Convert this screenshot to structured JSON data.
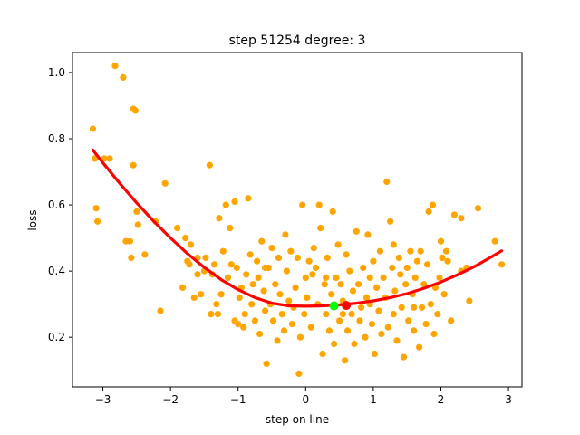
{
  "chart_data": {
    "type": "scatter",
    "title": "step 51254   degree: 3",
    "xlabel": "step on line",
    "ylabel": "loss",
    "xlim": [
      -3.45,
      3.2
    ],
    "ylim": [
      0.05,
      1.06
    ],
    "xticks": [
      -3,
      -2,
      -1,
      0,
      1,
      2,
      3
    ],
    "yticks": [
      0.2,
      0.4,
      0.6,
      0.8,
      1.0
    ],
    "xtick_labels": [
      "−3",
      "−2",
      "−1",
      "0",
      "1",
      "2",
      "3"
    ],
    "ytick_labels": [
      "0.2",
      "0.4",
      "0.6",
      "0.8",
      "1.0"
    ],
    "grid": false,
    "colors": {
      "scatter": "#ffa500",
      "fit": "#ff0000",
      "green_marker": "#00ff00",
      "red_marker": "#ff0000"
    },
    "fit_curve": {
      "degree": 3,
      "x": [
        -3.15,
        -3.0,
        -2.75,
        -2.5,
        -2.25,
        -2.0,
        -1.75,
        -1.5,
        -1.25,
        -1.0,
        -0.75,
        -0.5,
        -0.25,
        0.0,
        0.25,
        0.5,
        0.75,
        1.0,
        1.25,
        1.5,
        1.75,
        2.0,
        2.25,
        2.5,
        2.75,
        2.9
      ],
      "y": [
        0.766,
        0.727,
        0.665,
        0.606,
        0.551,
        0.5,
        0.453,
        0.411,
        0.374,
        0.344,
        0.32,
        0.303,
        0.295,
        0.294,
        0.295,
        0.298,
        0.303,
        0.31,
        0.32,
        0.332,
        0.348,
        0.367,
        0.389,
        0.414,
        0.443,
        0.461
      ]
    },
    "markers": [
      {
        "x": 0.42,
        "y": 0.295,
        "color": "#00ff00"
      },
      {
        "x": 0.6,
        "y": 0.296,
        "color": "#ff0000"
      }
    ],
    "points": [
      [
        -3.15,
        0.83
      ],
      [
        -3.12,
        0.74
      ],
      [
        -3.1,
        0.59
      ],
      [
        -3.08,
        0.55
      ],
      [
        -2.98,
        0.74
      ],
      [
        -2.82,
        1.02
      ],
      [
        -2.7,
        0.985
      ],
      [
        -2.66,
        0.49
      ],
      [
        -2.6,
        0.49
      ],
      [
        -2.58,
        0.44
      ],
      [
        -2.55,
        0.89
      ],
      [
        -2.52,
        0.885
      ],
      [
        -2.55,
        0.72
      ],
      [
        -2.5,
        0.58
      ],
      [
        -2.48,
        0.54
      ],
      [
        -2.38,
        0.45
      ],
      [
        -2.22,
        0.55
      ],
      [
        -2.15,
        0.28
      ],
      [
        -2.08,
        0.665
      ],
      [
        -1.9,
        0.53
      ],
      [
        -1.82,
        0.35
      ],
      [
        -1.78,
        0.5
      ],
      [
        -1.75,
        0.43
      ],
      [
        -1.72,
        0.42
      ],
      [
        -1.65,
        0.32
      ],
      [
        -1.6,
        0.44
      ],
      [
        -1.55,
        0.33
      ],
      [
        -1.5,
        0.4
      ],
      [
        -1.48,
        0.44
      ],
      [
        -1.42,
        0.72
      ],
      [
        -1.4,
        0.27
      ],
      [
        -1.38,
        0.39
      ],
      [
        -1.35,
        0.42
      ],
      [
        -1.32,
        0.3
      ],
      [
        -1.3,
        0.27
      ],
      [
        -1.28,
        0.56
      ],
      [
        -1.25,
        0.33
      ],
      [
        -1.22,
        0.46
      ],
      [
        -1.18,
        0.6
      ],
      [
        -1.15,
        0.38
      ],
      [
        -1.12,
        0.53
      ],
      [
        -1.1,
        0.42
      ],
      [
        -1.05,
        0.61
      ],
      [
        -1.02,
        0.41
      ],
      [
        -1.0,
        0.24
      ],
      [
        -0.98,
        0.32
      ],
      [
        -0.95,
        0.35
      ],
      [
        -0.92,
        0.23
      ],
      [
        -0.9,
        0.27
      ],
      [
        -0.88,
        0.39
      ],
      [
        -0.85,
        0.62
      ],
      [
        -0.82,
        0.45
      ],
      [
        -0.8,
        0.3
      ],
      [
        -0.78,
        0.36
      ],
      [
        -0.75,
        0.25
      ],
      [
        -0.72,
        0.43
      ],
      [
        -0.7,
        0.38
      ],
      [
        -0.68,
        0.21
      ],
      [
        -0.65,
        0.49
      ],
      [
        -0.62,
        0.34
      ],
      [
        -0.6,
        0.28
      ],
      [
        -0.58,
        0.12
      ],
      [
        -0.55,
        0.41
      ],
      [
        -0.52,
        0.3
      ],
      [
        -0.5,
        0.47
      ],
      [
        -0.48,
        0.25
      ],
      [
        -0.45,
        0.36
      ],
      [
        -0.42,
        0.19
      ],
      [
        -0.4,
        0.44
      ],
      [
        -0.38,
        0.33
      ],
      [
        -0.35,
        0.27
      ],
      [
        -0.32,
        0.22
      ],
      [
        -0.3,
        0.51
      ],
      [
        -0.28,
        0.4
      ],
      [
        -0.25,
        0.31
      ],
      [
        -0.22,
        0.46
      ],
      [
        -0.2,
        0.24
      ],
      [
        -0.18,
        0.29
      ],
      [
        -0.15,
        0.35
      ],
      [
        -0.12,
        0.44
      ],
      [
        -0.1,
        0.09
      ],
      [
        -0.08,
        0.2
      ],
      [
        -0.05,
        0.6
      ],
      [
        -0.02,
        0.27
      ],
      [
        0.0,
        0.38
      ],
      [
        0.02,
        0.32
      ],
      [
        0.05,
        0.43
      ],
      [
        0.08,
        0.23
      ],
      [
        0.1,
        0.39
      ],
      [
        0.12,
        0.47
      ],
      [
        0.15,
        0.41
      ],
      [
        0.18,
        0.3
      ],
      [
        0.2,
        0.6
      ],
      [
        0.22,
        0.53
      ],
      [
        0.25,
        0.15
      ],
      [
        0.28,
        0.36
      ],
      [
        0.3,
        0.27
      ],
      [
        0.32,
        0.44
      ],
      [
        0.35,
        0.22
      ],
      [
        0.38,
        0.33
      ],
      [
        0.4,
        0.58
      ],
      [
        0.42,
        0.18
      ],
      [
        0.45,
        0.38
      ],
      [
        0.48,
        0.48
      ],
      [
        0.5,
        0.25
      ],
      [
        0.52,
        0.36
      ],
      [
        0.55,
        0.31
      ],
      [
        0.58,
        0.13
      ],
      [
        0.6,
        0.45
      ],
      [
        0.62,
        0.22
      ],
      [
        0.65,
        0.4
      ],
      [
        0.68,
        0.27
      ],
      [
        0.7,
        0.34
      ],
      [
        0.72,
        0.18
      ],
      [
        0.75,
        0.52
      ],
      [
        0.78,
        0.36
      ],
      [
        0.8,
        0.25
      ],
      [
        0.82,
        0.29
      ],
      [
        0.85,
        0.41
      ],
      [
        0.88,
        0.2
      ],
      [
        0.9,
        0.32
      ],
      [
        0.92,
        0.51
      ],
      [
        0.95,
        0.38
      ],
      [
        0.98,
        0.24
      ],
      [
        1.0,
        0.43
      ],
      [
        1.02,
        0.15
      ],
      [
        1.05,
        0.35
      ],
      [
        1.08,
        0.28
      ],
      [
        1.1,
        0.46
      ],
      [
        1.12,
        0.21
      ],
      [
        1.15,
        0.38
      ],
      [
        1.18,
        0.32
      ],
      [
        1.2,
        0.67
      ],
      [
        1.22,
        0.23
      ],
      [
        1.25,
        0.55
      ],
      [
        1.28,
        0.41
      ],
      [
        1.3,
        0.27
      ],
      [
        1.32,
        0.34
      ],
      [
        1.35,
        0.19
      ],
      [
        1.38,
        0.44
      ],
      [
        1.4,
        0.39
      ],
      [
        1.42,
        0.29
      ],
      [
        1.45,
        0.14
      ],
      [
        1.48,
        0.36
      ],
      [
        1.5,
        0.41
      ],
      [
        1.52,
        0.25
      ],
      [
        1.55,
        0.46
      ],
      [
        1.58,
        0.33
      ],
      [
        1.6,
        0.22
      ],
      [
        1.62,
        0.38
      ],
      [
        1.65,
        0.43
      ],
      [
        1.68,
        0.17
      ],
      [
        1.7,
        0.46
      ],
      [
        1.72,
        0.29
      ],
      [
        1.75,
        0.36
      ],
      [
        1.78,
        0.24
      ],
      [
        1.8,
        0.42
      ],
      [
        1.82,
        0.58
      ],
      [
        1.85,
        0.3
      ],
      [
        1.88,
        0.6
      ],
      [
        1.9,
        0.21
      ],
      [
        1.92,
        0.35
      ],
      [
        1.95,
        0.27
      ],
      [
        1.98,
        0.38
      ],
      [
        2.0,
        0.49
      ],
      [
        2.02,
        0.44
      ],
      [
        2.05,
        0.33
      ],
      [
        2.08,
        0.46
      ],
      [
        2.1,
        0.43
      ],
      [
        2.15,
        0.25
      ],
      [
        2.2,
        0.57
      ],
      [
        2.3,
        0.56
      ],
      [
        2.38,
        0.41
      ],
      [
        2.42,
        0.31
      ],
      [
        2.55,
        0.59
      ],
      [
        2.8,
        0.49
      ],
      [
        2.9,
        0.42
      ],
      [
        -2.9,
        0.74
      ],
      [
        -1.7,
        0.48
      ],
      [
        -1.6,
        0.39
      ],
      [
        -1.05,
        0.25
      ],
      [
        -0.6,
        0.41
      ],
      [
        0.3,
        0.38
      ],
      [
        0.55,
        0.27
      ],
      [
        0.95,
        0.3
      ],
      [
        1.3,
        0.48
      ],
      [
        1.6,
        0.29
      ],
      [
        2.3,
        0.4
      ]
    ]
  }
}
